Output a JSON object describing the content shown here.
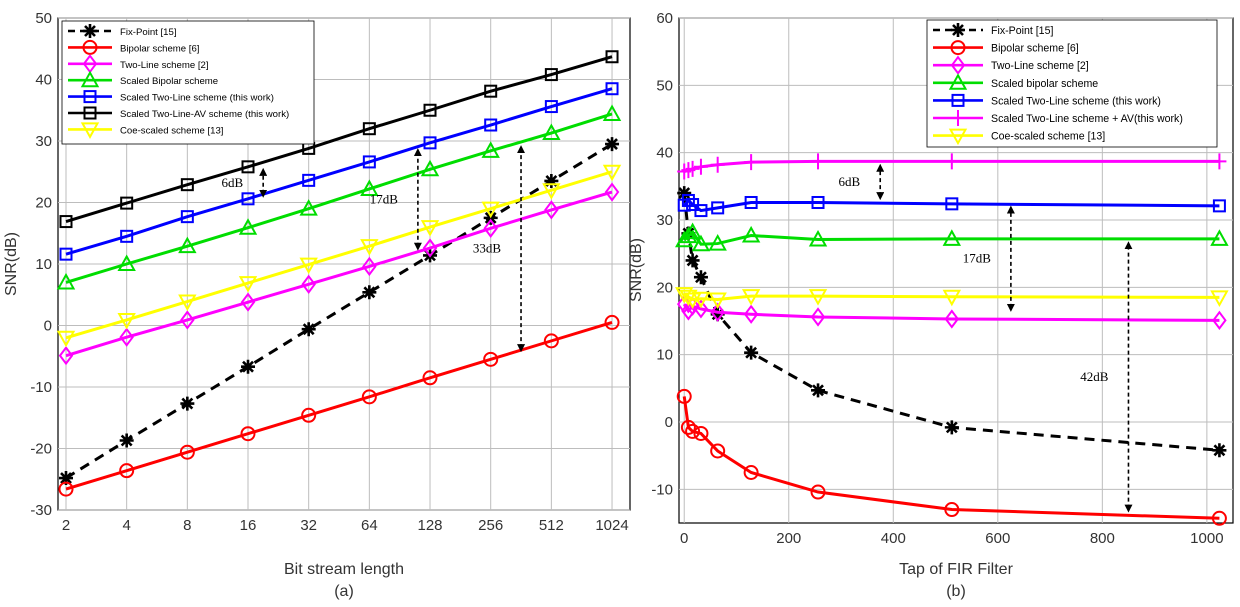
{
  "chart_data": [
    {
      "type": "line",
      "panel_label": "(a)",
      "xlabel": "Bit stream length",
      "ylabel": "SNR(dB)",
      "x_scale": "log2-categorical",
      "categories": [
        "2",
        "4",
        "8",
        "16",
        "32",
        "64",
        "128",
        "256",
        "512",
        "1024"
      ],
      "ylim": [
        -30,
        50
      ],
      "yticks": [
        -30,
        -20,
        -10,
        0,
        10,
        20,
        30,
        40,
        50
      ],
      "grid": true,
      "legend_position": "top-left",
      "series": [
        {
          "name": "Fix-Point [15]",
          "color": "#000000",
          "dash": true,
          "marker": "asterisk",
          "values": [
            -24.8,
            -18.7,
            -12.7,
            -6.7,
            -0.6,
            5.4,
            11.4,
            17.5,
            23.5,
            29.5
          ]
        },
        {
          "name": "Bipolar scheme [6]",
          "color": "#ff0000",
          "dash": false,
          "marker": "circle",
          "values": [
            -26.6,
            -23.6,
            -20.6,
            -17.6,
            -14.6,
            -11.6,
            -8.5,
            -5.5,
            -2.5,
            0.5
          ]
        },
        {
          "name": "Two-Line scheme [2]",
          "color": "#ff00ff",
          "dash": false,
          "marker": "diamond",
          "values": [
            -4.9,
            -1.9,
            0.9,
            3.8,
            6.7,
            9.6,
            12.6,
            15.8,
            18.8,
            21.7
          ]
        },
        {
          "name": "Scaled Bipolar scheme",
          "color": "#00dd00",
          "dash": false,
          "marker": "triangle",
          "values": [
            7.0,
            10.0,
            12.9,
            15.9,
            19.0,
            22.2,
            25.4,
            28.4,
            31.3,
            34.4
          ]
        },
        {
          "name": "Scaled Two-Line scheme (this work)",
          "color": "#0000ff",
          "dash": false,
          "marker": "square",
          "values": [
            11.6,
            14.5,
            17.7,
            20.6,
            23.6,
            26.6,
            29.7,
            32.6,
            35.6,
            38.5
          ]
        },
        {
          "name": "Scaled Two-Line-AV scheme (this work)",
          "color": "#000000",
          "dash": false,
          "marker": "square",
          "values": [
            16.9,
            19.9,
            22.9,
            25.8,
            28.8,
            32.0,
            35.0,
            38.1,
            40.8,
            43.7
          ]
        },
        {
          "name": "Coe-scaled scheme [13]",
          "color": "#ffff00",
          "dash": false,
          "marker": "triangle-down",
          "values": [
            -2.0,
            0.9,
            3.9,
            6.9,
            9.9,
            12.9,
            16.0,
            19.0,
            22.0,
            25.0
          ]
        }
      ],
      "annotations": [
        {
          "text": "6dB",
          "x_index": 3.25,
          "y_from": 20.6,
          "y_to": 25.8
        },
        {
          "text": "17dB",
          "x_index": 5.8,
          "y_from": 12.0,
          "y_to": 29.0
        },
        {
          "text": "33dB",
          "x_index": 7.5,
          "y_from": -4.5,
          "y_to": 29.5
        }
      ]
    },
    {
      "type": "line",
      "panel_label": "(b)",
      "xlabel": "Tap of FIR Filter",
      "ylabel": "SNR(dB)",
      "xlim": [
        -10,
        1050
      ],
      "xticks": [
        0,
        200,
        400,
        600,
        800,
        1000
      ],
      "ylim": [
        -15,
        60
      ],
      "yticks": [
        -10,
        0,
        10,
        20,
        30,
        40,
        50,
        60
      ],
      "grid": true,
      "legend_position": "top-right",
      "series": [
        {
          "name": "Fix-Point [15]",
          "color": "#000000",
          "dash": true,
          "marker": "asterisk",
          "x": [
            0,
            8,
            16,
            32,
            64,
            128,
            256,
            512,
            1024
          ],
          "values": [
            34.0,
            28.0,
            24.0,
            21.5,
            16.0,
            10.3,
            4.7,
            -0.8,
            -4.2
          ]
        },
        {
          "name": "Bipolar scheme [6]",
          "color": "#ff0000",
          "dash": false,
          "marker": "circle",
          "x": [
            0,
            8,
            16,
            32,
            64,
            128,
            256,
            512,
            1024
          ],
          "values": [
            3.8,
            -0.8,
            -1.4,
            -1.7,
            -4.3,
            -7.5,
            -10.4,
            -13.0,
            -14.3
          ]
        },
        {
          "name": "Two-Line scheme [2]",
          "color": "#ff00ff",
          "dash": false,
          "marker": "diamond",
          "x": [
            0,
            8,
            16,
            32,
            64,
            128,
            256,
            512,
            1024
          ],
          "values": [
            17.5,
            16.5,
            17.2,
            16.8,
            16.3,
            16.0,
            15.6,
            15.3,
            15.1
          ]
        },
        {
          "name": "Scaled bipolar scheme",
          "color": "#00dd00",
          "dash": false,
          "marker": "triangle",
          "x": [
            0,
            8,
            16,
            32,
            64,
            128,
            256,
            512,
            1024
          ],
          "values": [
            27.0,
            27.6,
            28.2,
            26.4,
            26.5,
            27.7,
            27.1,
            27.2,
            27.2
          ]
        },
        {
          "name": "Scaled Two-Line scheme (this work)",
          "color": "#0000ff",
          "dash": false,
          "marker": "square",
          "x": [
            0,
            8,
            16,
            32,
            64,
            128,
            256,
            512,
            1024
          ],
          "values": [
            32.2,
            32.9,
            32.3,
            31.4,
            31.8,
            32.6,
            32.6,
            32.4,
            32.1
          ]
        },
        {
          "name": "Scaled Two-Line scheme + AV(this work)",
          "color": "#ff00ff",
          "dash": false,
          "marker": "plus",
          "x": [
            0,
            8,
            16,
            32,
            64,
            128,
            256,
            512,
            1024
          ],
          "values": [
            37.2,
            37.4,
            37.6,
            37.9,
            38.2,
            38.6,
            38.7,
            38.7,
            38.7
          ]
        },
        {
          "name": "Coe-scaled scheme [13]",
          "color": "#ffff00",
          "dash": false,
          "marker": "triangle-down",
          "x": [
            0,
            8,
            16,
            32,
            64,
            128,
            256,
            512,
            1024
          ],
          "values": [
            19.0,
            18.6,
            18.2,
            18.3,
            18.2,
            18.7,
            18.7,
            18.6,
            18.5
          ]
        }
      ],
      "annotations": [
        {
          "text": "6dB",
          "x": 375,
          "y_from": 32.8,
          "y_to": 38.5
        },
        {
          "text": "17dB",
          "x": 625,
          "y_from": 16.2,
          "y_to": 32.3
        },
        {
          "text": "42dB",
          "x": 850,
          "y_from": -13.6,
          "y_to": 27.0
        }
      ]
    }
  ]
}
